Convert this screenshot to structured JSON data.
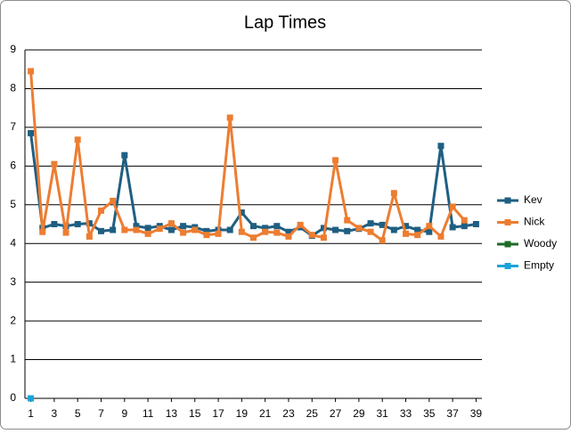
{
  "chart_data": {
    "type": "line",
    "title": "Lap Times",
    "x": [
      1,
      2,
      3,
      4,
      5,
      6,
      7,
      8,
      9,
      10,
      11,
      12,
      13,
      14,
      15,
      16,
      17,
      18,
      19,
      20,
      21,
      22,
      23,
      24,
      25,
      26,
      27,
      28,
      29,
      30,
      31,
      32,
      33,
      34,
      35,
      36,
      37,
      38,
      39
    ],
    "xlim": [
      0.5,
      39.5
    ],
    "xticks": [
      1,
      3,
      5,
      7,
      9,
      11,
      13,
      15,
      17,
      19,
      21,
      23,
      25,
      27,
      29,
      31,
      33,
      35,
      37,
      39
    ],
    "ylim": [
      0,
      9
    ],
    "yticks": [
      0,
      1,
      2,
      3,
      4,
      5,
      6,
      7,
      8,
      9
    ],
    "grid": true,
    "legend": "right",
    "series": [
      {
        "name": "Kev",
        "color": "#1f5f82",
        "values": [
          6.85,
          4.4,
          4.5,
          4.45,
          4.5,
          4.52,
          4.32,
          4.35,
          6.28,
          4.45,
          4.4,
          4.45,
          4.35,
          4.45,
          4.42,
          4.32,
          4.35,
          4.35,
          4.8,
          4.45,
          4.4,
          4.45,
          4.3,
          4.42,
          4.2,
          4.4,
          4.35,
          4.32,
          4.38,
          4.52,
          4.48,
          4.35,
          4.45,
          4.35,
          4.3,
          6.52,
          4.42,
          4.45,
          4.5
        ]
      },
      {
        "name": "Nick",
        "color": "#ed7d31",
        "values": [
          8.45,
          4.3,
          6.05,
          4.28,
          6.68,
          4.18,
          4.85,
          5.1,
          4.35,
          4.35,
          4.25,
          4.38,
          4.52,
          4.28,
          4.35,
          4.22,
          4.25,
          7.25,
          4.3,
          4.15,
          4.3,
          4.28,
          4.18,
          4.48,
          4.22,
          4.15,
          6.15,
          4.6,
          4.4,
          4.3,
          4.08,
          5.3,
          4.25,
          4.22,
          4.45,
          4.18,
          4.95,
          4.6,
          null
        ]
      },
      {
        "name": "Woody",
        "color": "#1e6b25",
        "values": [
          null,
          null,
          null,
          null,
          null,
          null,
          null,
          null,
          null,
          null,
          null,
          null,
          null,
          null,
          null,
          null,
          null,
          null,
          null,
          null,
          null,
          null,
          null,
          null,
          null,
          null,
          null,
          null,
          null,
          null,
          null,
          null,
          null,
          null,
          null,
          null,
          null,
          null,
          null
        ]
      },
      {
        "name": "Empty",
        "color": "#1aa3d9",
        "values": [
          0,
          null,
          null,
          null,
          null,
          null,
          null,
          null,
          null,
          null,
          null,
          null,
          null,
          null,
          null,
          null,
          null,
          null,
          null,
          null,
          null,
          null,
          null,
          null,
          null,
          null,
          null,
          null,
          null,
          null,
          null,
          null,
          null,
          null,
          null,
          null,
          null,
          null,
          null
        ]
      }
    ]
  }
}
